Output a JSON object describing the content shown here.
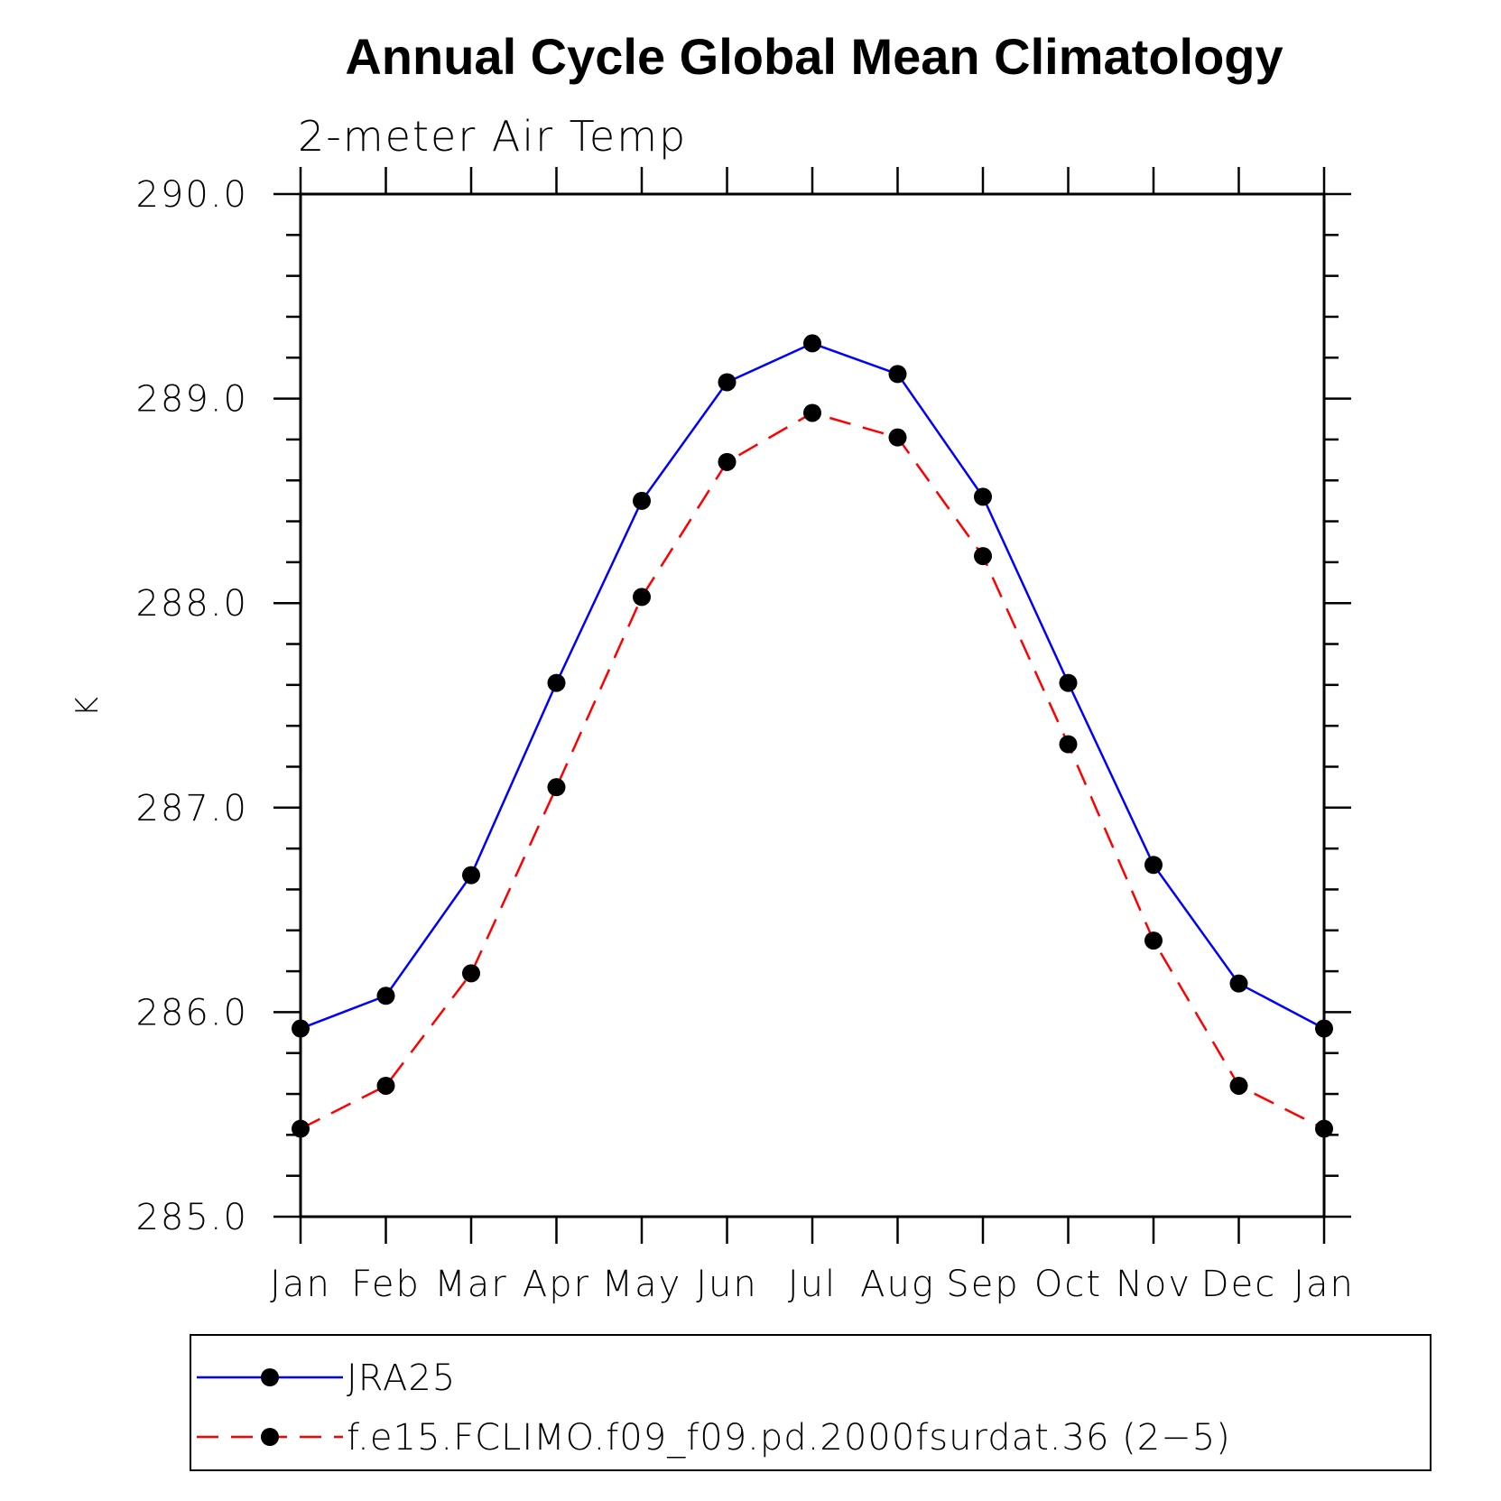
{
  "chart_data": {
    "type": "line",
    "title": "Annual Cycle Global Mean Climatology",
    "subtitle": "2-meter Air Temp",
    "ylabel": "K",
    "xlabel": "",
    "ylim": [
      285.0,
      290.0
    ],
    "y_tick_labels": [
      "285.0",
      "286.0",
      "287.0",
      "288.0",
      "289.0",
      "290.0"
    ],
    "categories": [
      "Jan",
      "Feb",
      "Mar",
      "Apr",
      "May",
      "Jun",
      "Jul",
      "Aug",
      "Sep",
      "Oct",
      "Nov",
      "Dec",
      "Jan"
    ],
    "series": [
      {
        "name": "JRA25",
        "color": "#0000ff",
        "style": "solid",
        "values": [
          285.92,
          286.08,
          286.67,
          287.61,
          288.5,
          289.08,
          289.27,
          289.12,
          288.52,
          287.61,
          286.72,
          286.14,
          285.92
        ]
      },
      {
        "name": "f.e15.FCLIMO.f09_f09.pd.2000fsurdat.36 (2−5)",
        "color": "#ff0000",
        "style": "dashed",
        "values": [
          285.43,
          285.64,
          286.19,
          287.1,
          288.03,
          288.69,
          288.93,
          288.81,
          288.23,
          287.31,
          286.35,
          285.64,
          285.43
        ]
      }
    ],
    "legend_position": "bottom"
  }
}
